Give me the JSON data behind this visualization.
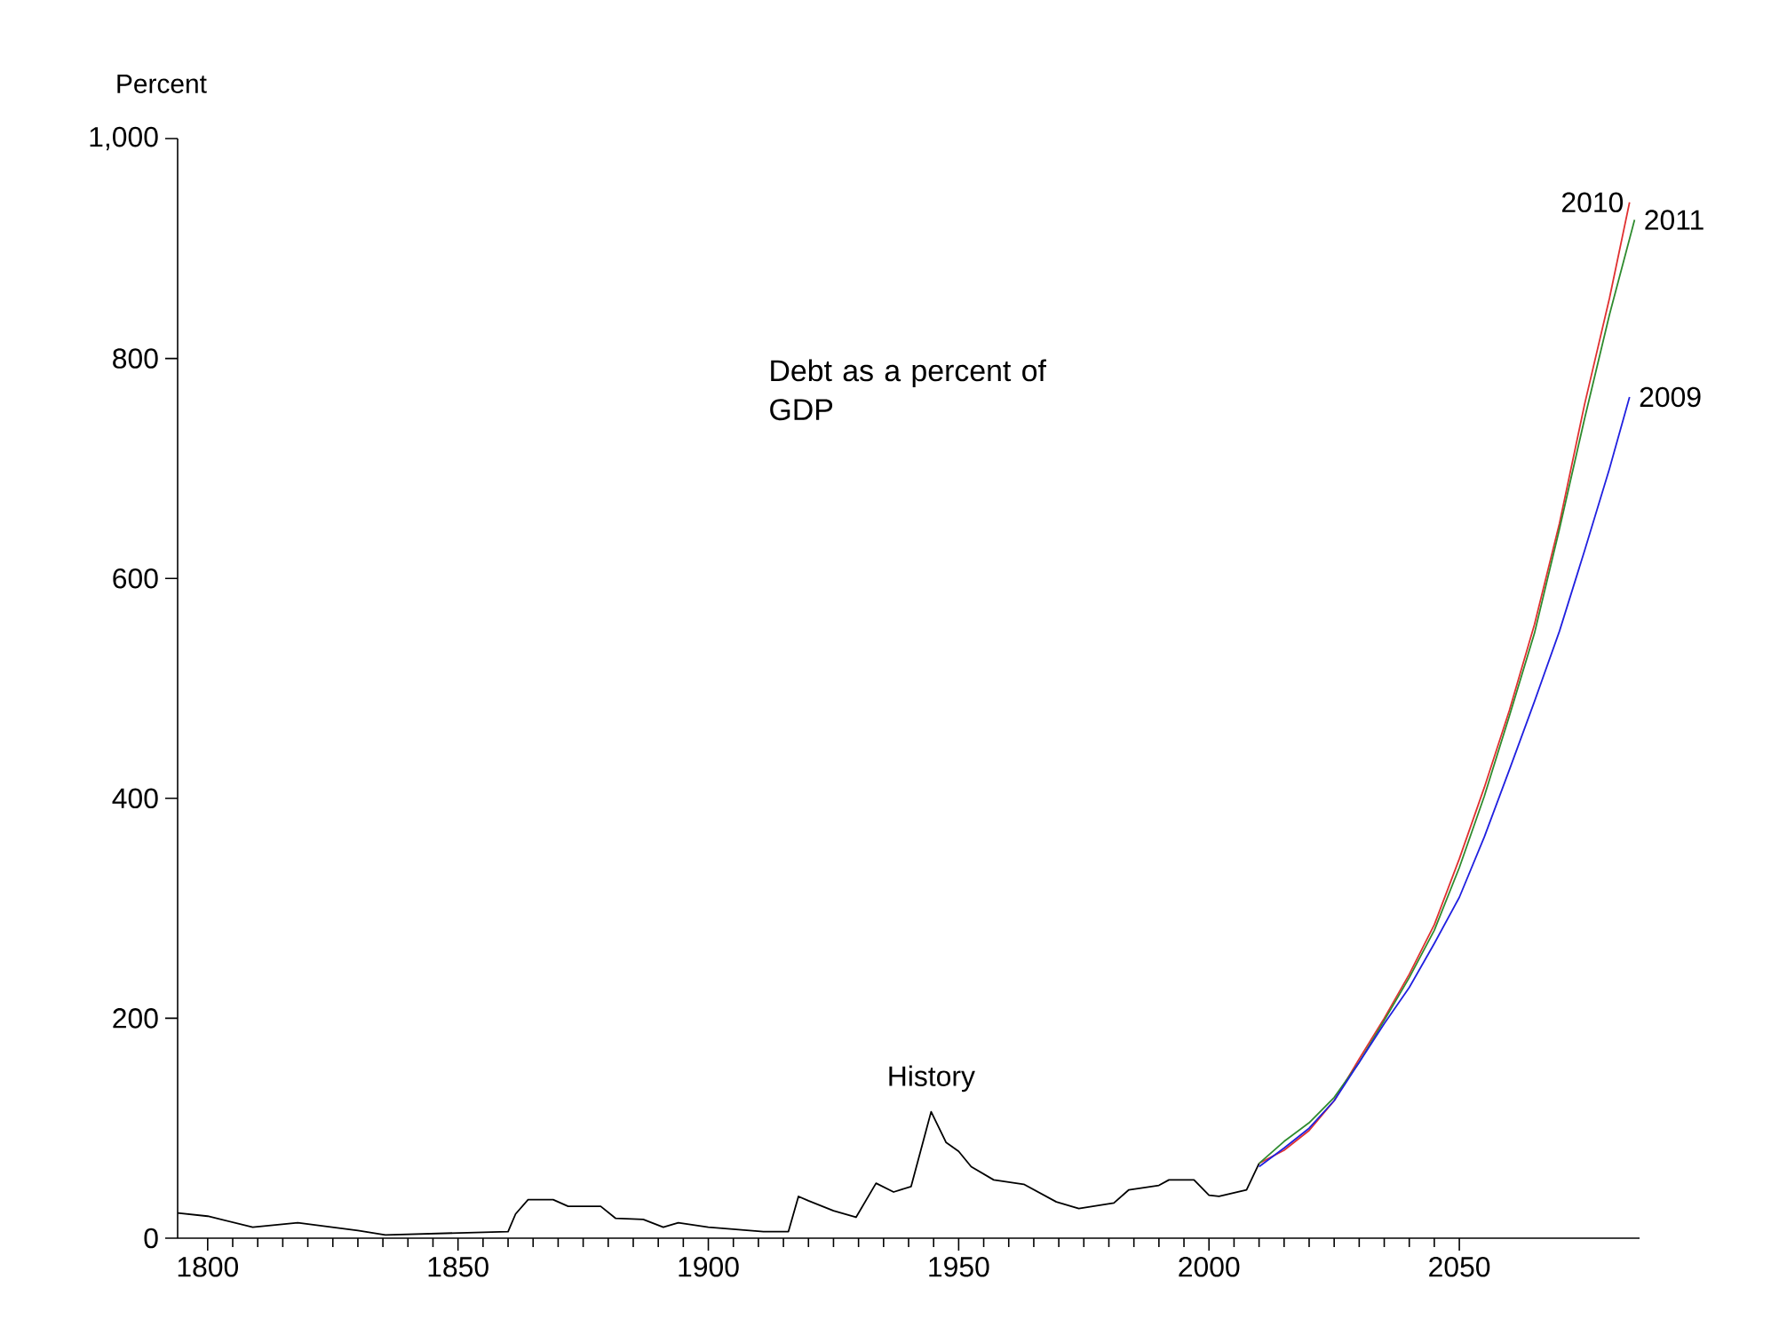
{
  "chart_data": {
    "type": "line",
    "ylabel": "Percent",
    "annotations": [
      "Debt as a percent of GDP"
    ],
    "xlim": [
      1794,
      2086
    ],
    "xticks": [
      1800,
      1850,
      1900,
      1950,
      2000,
      2050
    ],
    "ylim": [
      0,
      1000
    ],
    "yticks": [
      0,
      200,
      400,
      600,
      800,
      {
        "value": 1000,
        "label": "1,000"
      }
    ],
    "grid": false,
    "legend": false,
    "marker": "none",
    "line_style": "solid",
    "series": [
      {
        "name": "History",
        "color": "#000000",
        "x": [
          1794,
          1800,
          1809,
          1818,
          1830,
          1835.5,
          1860,
          1861.5,
          1864,
          1869,
          1872,
          1878.5,
          1881.5,
          1887,
          1891,
          1894,
          1900,
          1911,
          1916,
          1918,
          1920,
          1925,
          1929.5,
          1933.5,
          1937,
          1940.5,
          1944.5,
          1947.5,
          1950,
          1952.5,
          1957,
          1963,
          1969.5,
          1974,
          1981,
          1984,
          1990,
          1992,
          1997,
          2000,
          2002,
          2007.5,
          2010
        ],
        "values": [
          23,
          20,
          10,
          14,
          7,
          3,
          6,
          22,
          35,
          35,
          29,
          29,
          18,
          17,
          10,
          14,
          10,
          6,
          6,
          38,
          34,
          25,
          19,
          50,
          42,
          47,
          115,
          87,
          79,
          65,
          53,
          49,
          33,
          27,
          32,
          44,
          48,
          53,
          53,
          39,
          38,
          44,
          68
        ]
      },
      {
        "name": "2010",
        "color": "#e03030",
        "x": [
          2010,
          2015,
          2020,
          2025,
          2030,
          2035,
          2040,
          2045,
          2050,
          2055,
          2060,
          2065,
          2070,
          2075,
          2080,
          2084
        ],
        "values": [
          68,
          80,
          98,
          125,
          163,
          200,
          240,
          285,
          345,
          410,
          480,
          558,
          650,
          758,
          855,
          942
        ]
      },
      {
        "name": "2011",
        "color": "#2e8b2e",
        "x": [
          2010,
          2015,
          2020,
          2025,
          2030,
          2035,
          2040,
          2045,
          2050,
          2055,
          2060,
          2065,
          2070,
          2075,
          2080,
          2085
        ],
        "values": [
          68,
          88,
          105,
          128,
          160,
          198,
          237,
          280,
          337,
          402,
          475,
          550,
          645,
          745,
          840,
          926
        ]
      },
      {
        "name": "2009",
        "color": "#2020e0",
        "x": [
          2010,
          2015,
          2020,
          2025,
          2030,
          2035,
          2040,
          2045,
          2050,
          2055,
          2060,
          2065,
          2070,
          2075,
          2080,
          2084
        ],
        "values": [
          65,
          82,
          100,
          125,
          160,
          195,
          228,
          268,
          310,
          365,
          426,
          488,
          552,
          625,
          700,
          765
        ]
      }
    ]
  }
}
